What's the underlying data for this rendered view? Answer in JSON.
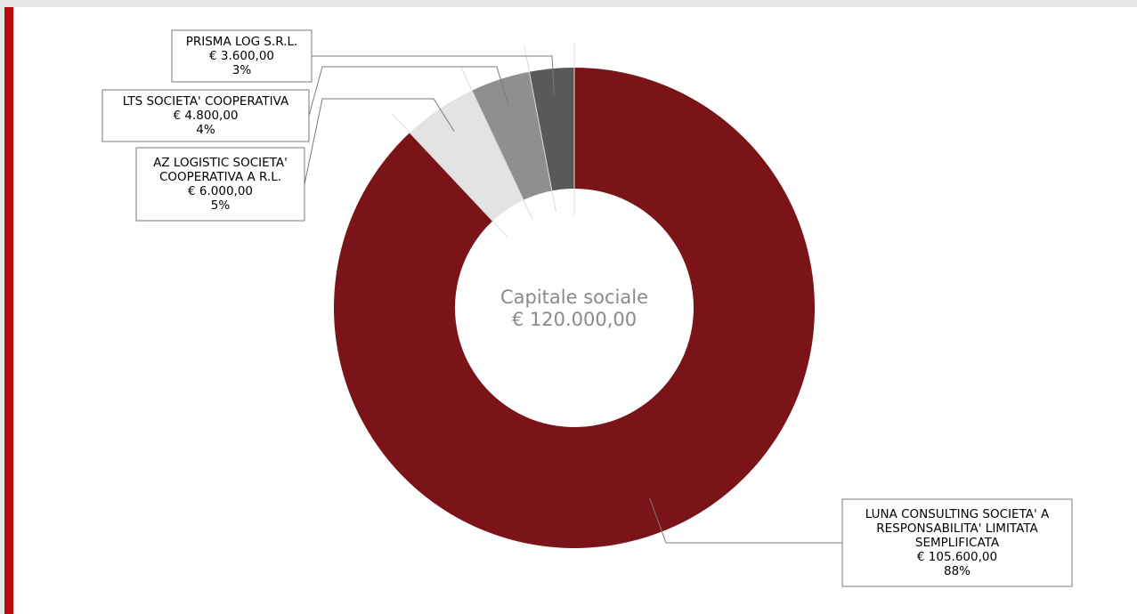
{
  "chart_data": {
    "type": "pie",
    "variant": "donut",
    "center_label": {
      "title": "Capitale sociale",
      "value": "€ 120.000,00"
    },
    "total": 120000,
    "slices": [
      {
        "name": "LUNA CONSULTING SOCIETA' A RESPONSABILITA' LIMITATA SEMPLIFICATA",
        "label_lines": [
          "LUNA CONSULTING SOCIETA' A",
          "RESPONSABILITA' LIMITATA",
          "SEMPLIFICATA"
        ],
        "value": 105600,
        "value_label": "€ 105.600,00",
        "percent_label": "88%",
        "color": "#7b1418"
      },
      {
        "name": "AZ LOGISTIC SOCIETA' COOPERATIVA A R.L.",
        "label_lines": [
          "AZ LOGISTIC SOCIETA'",
          "COOPERATIVA A R.L."
        ],
        "value": 6000,
        "value_label": "€ 6.000,00",
        "percent_label": "5%",
        "color": "#e3e3e3"
      },
      {
        "name": "LTS SOCIETA' COOPERATIVA",
        "label_lines": [
          "LTS SOCIETA' COOPERATIVA"
        ],
        "value": 4800,
        "value_label": "€ 4.800,00",
        "percent_label": "4%",
        "color": "#8f8f8f"
      },
      {
        "name": "PRISMA LOG S.R.L.",
        "label_lines": [
          "PRISMA LOG S.R.L."
        ],
        "value": 3600,
        "value_label": "€ 3.600,00",
        "percent_label": "3%",
        "color": "#595959"
      }
    ]
  }
}
